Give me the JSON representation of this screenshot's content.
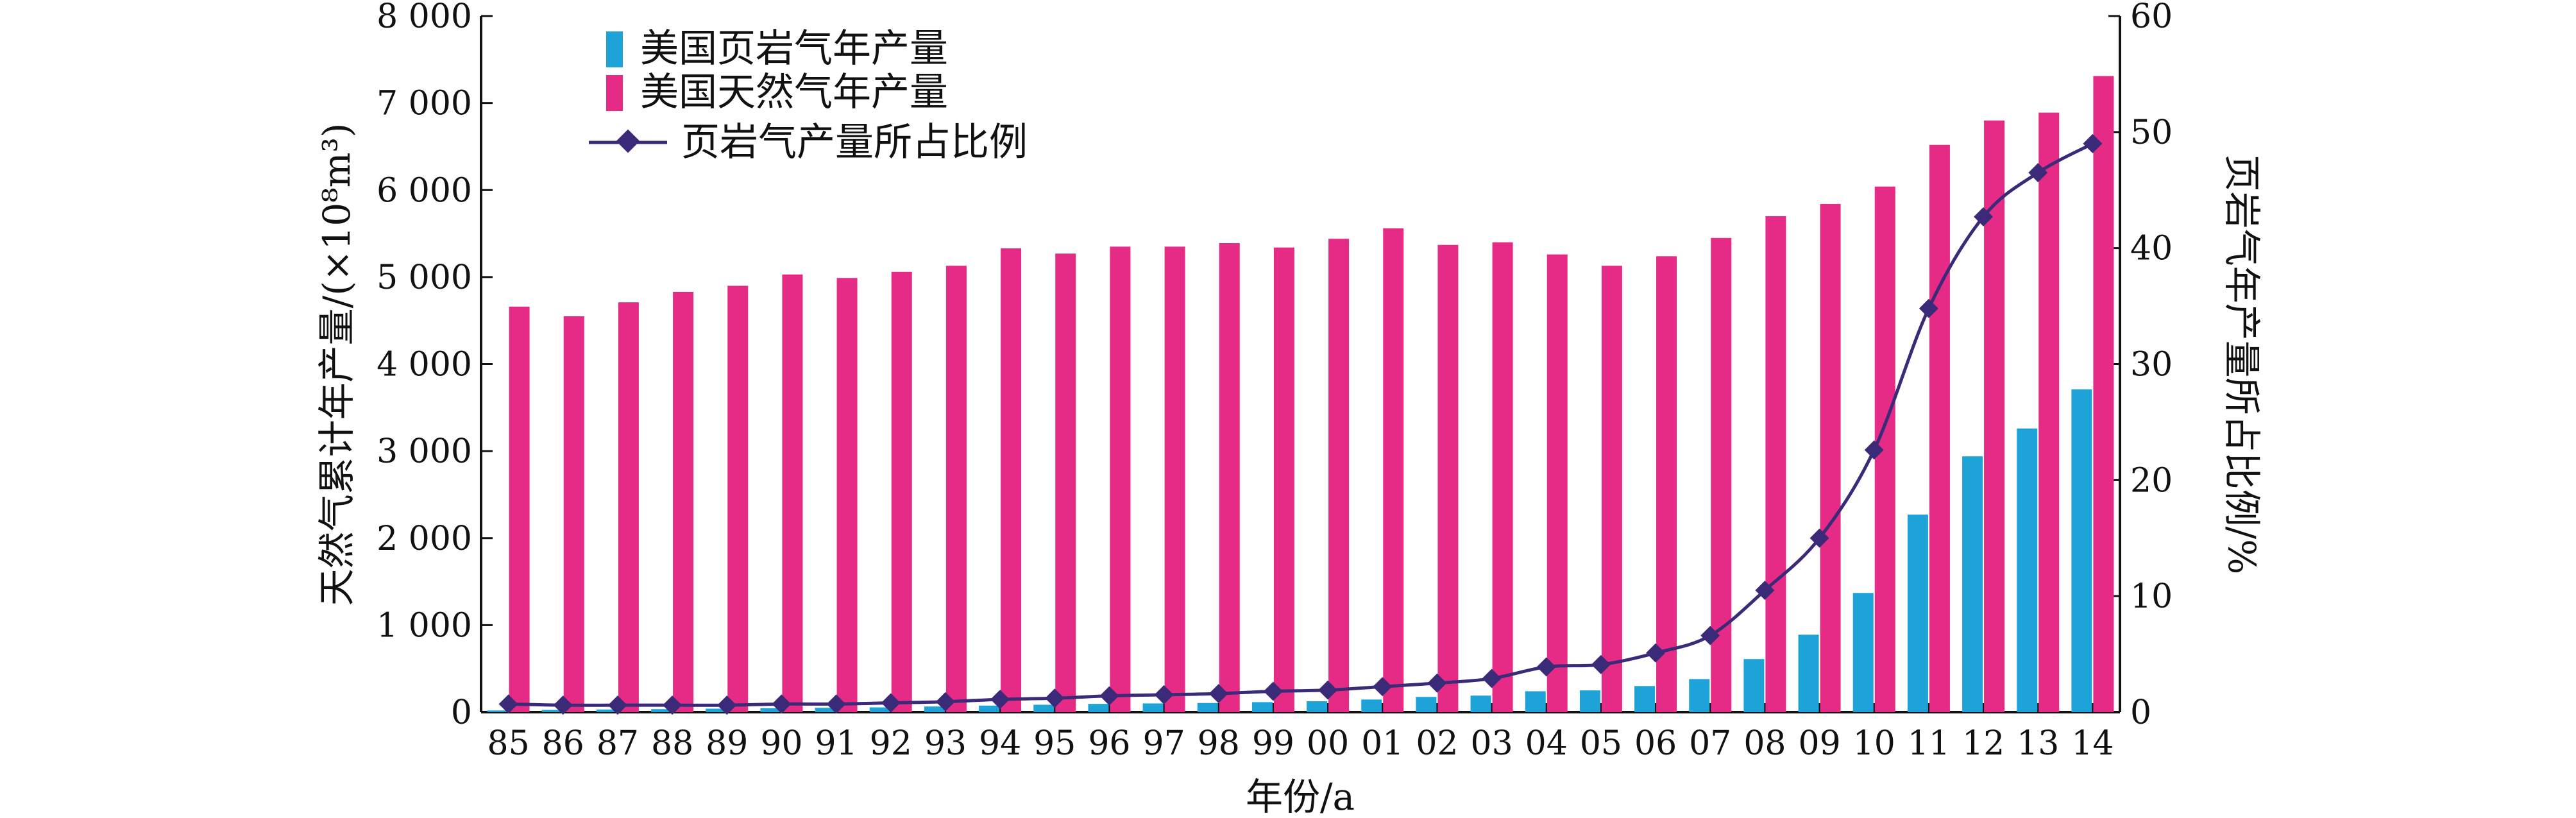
{
  "chart_data": {
    "type": "bar",
    "categories": [
      "85",
      "86",
      "87",
      "88",
      "89",
      "90",
      "91",
      "92",
      "93",
      "94",
      "95",
      "96",
      "97",
      "98",
      "99",
      "00",
      "01",
      "02",
      "03",
      "04",
      "05",
      "06",
      "07",
      "08",
      "09",
      "10",
      "11",
      "12",
      "13",
      "14"
    ],
    "series": [
      {
        "name": "美国页岩气年产量",
        "type": "bar",
        "axis": "left",
        "color": "#1ea3d9",
        "values": [
          20,
          25,
          30,
          35,
          40,
          45,
          50,
          55,
          65,
          75,
          85,
          95,
          100,
          105,
          115,
          125,
          145,
          175,
          190,
          240,
          250,
          300,
          380,
          610,
          890,
          1370,
          2270,
          2940,
          3260,
          3710
        ]
      },
      {
        "name": "美国天然气年产量",
        "type": "bar",
        "axis": "left",
        "color": "#e62b87",
        "values": [
          4660,
          4550,
          4710,
          4830,
          4900,
          5030,
          4990,
          5060,
          5130,
          5330,
          5270,
          5350,
          5350,
          5390,
          5340,
          5440,
          5560,
          5370,
          5400,
          5260,
          5130,
          5240,
          5450,
          5700,
          5840,
          6040,
          6520,
          6800,
          6890,
          7310
        ]
      },
      {
        "name": "页岩气产量所占比例",
        "type": "line",
        "axis": "right",
        "color": "#3a2a78",
        "marker": "diamond",
        "values": [
          0.7,
          0.6,
          0.6,
          0.6,
          0.6,
          0.7,
          0.7,
          0.8,
          0.9,
          1.1,
          1.2,
          1.4,
          1.5,
          1.6,
          1.8,
          1.9,
          2.2,
          2.5,
          2.9,
          3.9,
          4.1,
          5.1,
          6.6,
          10.5,
          15.0,
          22.6,
          34.8,
          42.7,
          46.5,
          49.0
        ]
      }
    ],
    "xlabel": "年份/a",
    "ylabel": "天然气累计年产量/(×10⁸m³)",
    "ylabel_right": "页岩气年产量所占比例/%",
    "ylim": [
      0,
      8000
    ],
    "ylim_right": [
      0,
      60
    ],
    "yticks": [
      0,
      1000,
      2000,
      3000,
      4000,
      5000,
      6000,
      7000,
      8000
    ],
    "ytick_labels": [
      "0",
      "1 000",
      "2 000",
      "3 000",
      "4 000",
      "5 000",
      "6 000",
      "7 000",
      "8 000"
    ],
    "yticks_right": [
      0,
      10,
      20,
      30,
      40,
      50,
      60
    ],
    "ytick_labels_right": [
      "0",
      "10",
      "20",
      "30",
      "40",
      "50",
      "60"
    ],
    "grid": false,
    "legend_position": "top-left"
  }
}
